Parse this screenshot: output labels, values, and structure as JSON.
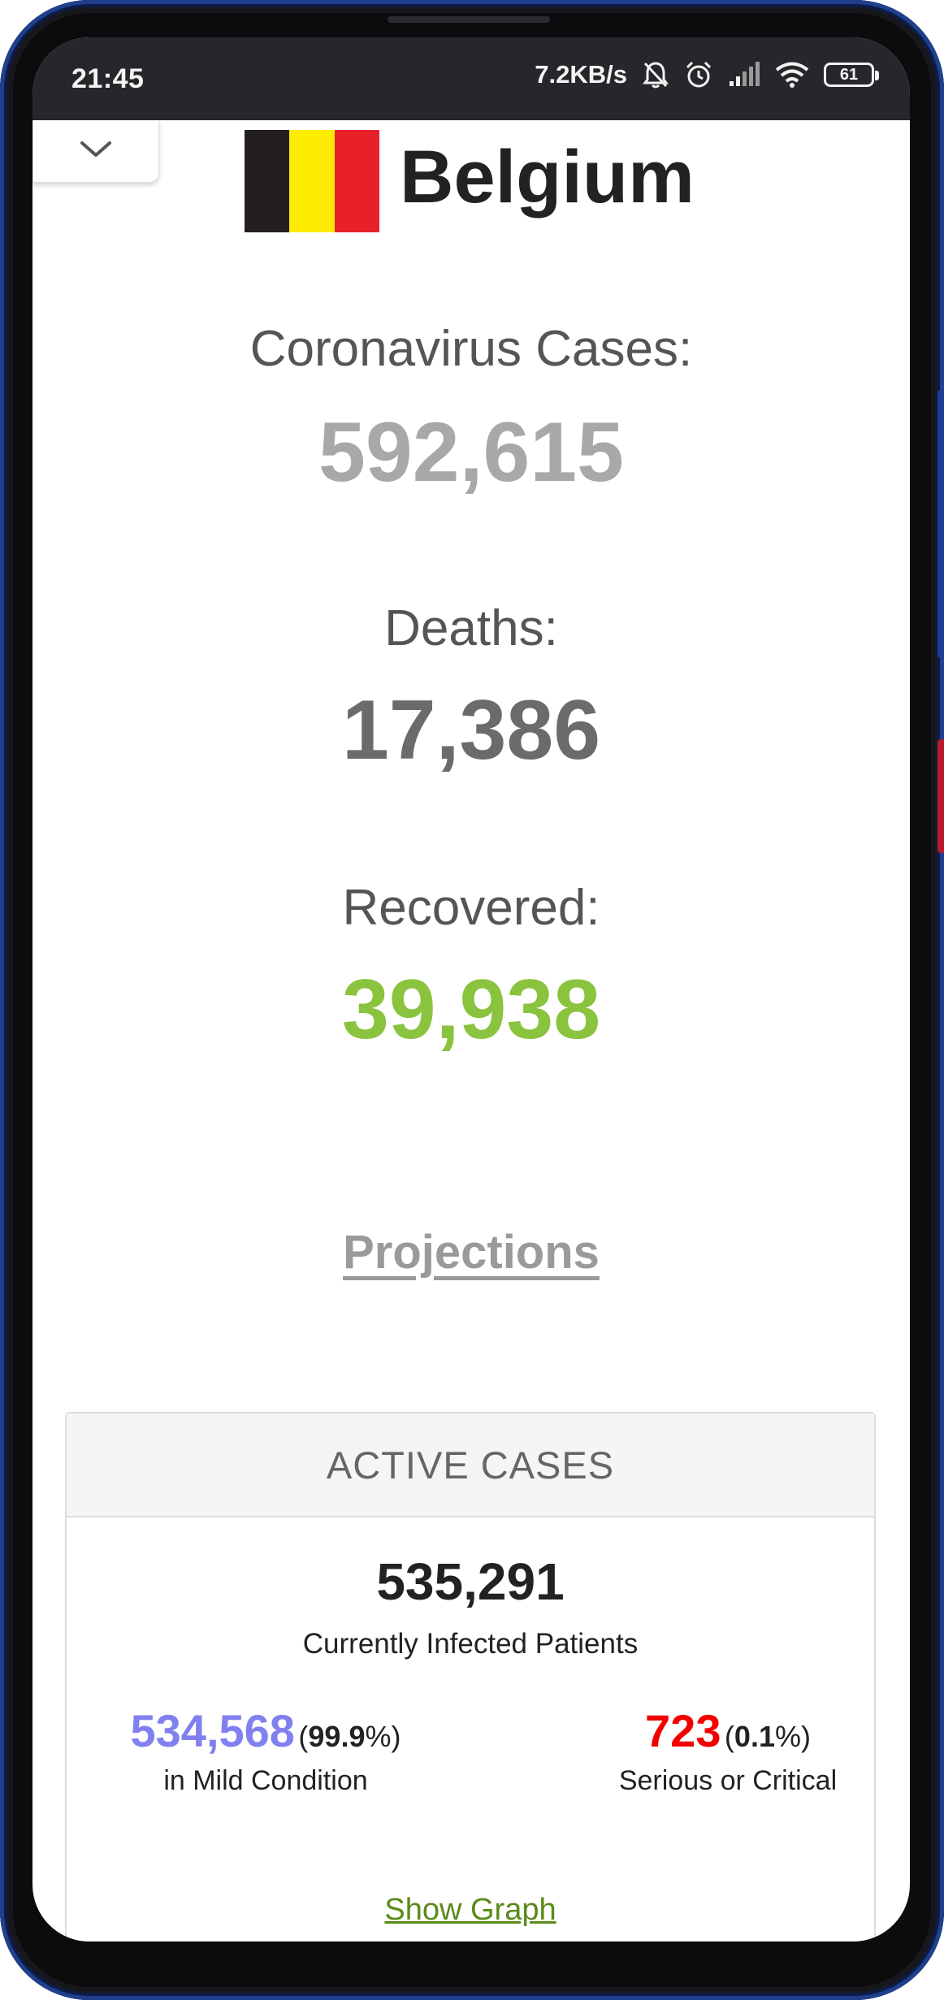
{
  "status_bar": {
    "time": "21:45",
    "net_speed": "7.2KB/s",
    "battery": "61"
  },
  "header": {
    "country": "Belgium",
    "flag_colors": [
      "#231f20",
      "#fdeb00",
      "#e8202a"
    ]
  },
  "stats": {
    "cases_label": "Coronavirus Cases:",
    "cases_value": "592,615",
    "deaths_label": "Deaths:",
    "deaths_value": "17,386",
    "recovered_label": "Recovered:",
    "recovered_value": "39,938"
  },
  "colors": {
    "cases": "#a8a8a8",
    "deaths": "#6b6b6b",
    "recovered": "#8ac33e",
    "mild": "#8080f0",
    "critical": "#f20000"
  },
  "projections_link": "Projections",
  "active_cases": {
    "heading": "ACTIVE CASES",
    "total": "535,291",
    "total_caption": "Currently Infected Patients",
    "mild_value": "534,568",
    "mild_pct_open": "(",
    "mild_pct": "99.9",
    "mild_pct_close": "%)",
    "mild_caption": "in Mild Condition",
    "critical_value": "723",
    "critical_pct_open": "(",
    "critical_pct": "0.1",
    "critical_pct_close": "%)",
    "critical_caption": "Serious or Critical",
    "show_graph": "Show Graph"
  }
}
